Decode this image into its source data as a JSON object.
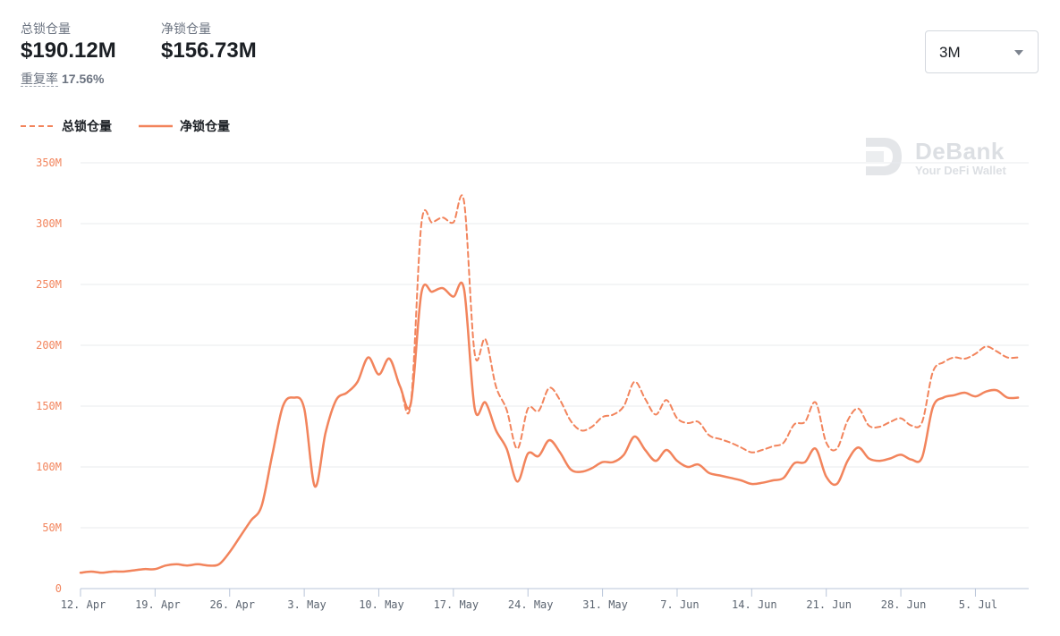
{
  "header": {
    "total_tvl_label": "总锁仓量",
    "total_tvl_value": "$190.12M",
    "net_tvl_label": "净锁仓量",
    "net_tvl_value": "$156.73M",
    "overlap_label": "重复率",
    "overlap_value": "17.56%"
  },
  "range_select": {
    "value": "3M"
  },
  "legend": {
    "total": "总锁仓量",
    "net": "净锁仓量"
  },
  "watermark": {
    "title": "DeBank",
    "subtitle": "Your DeFi Wallet"
  },
  "colors": {
    "series": "#f2845c",
    "ytick": "#f2845c",
    "xtick": "#5b6470",
    "grid": "#e9ebee",
    "axis": "#b8c4d8"
  },
  "chart_data": {
    "type": "line",
    "ylim": [
      0,
      350
    ],
    "y_unit": "M",
    "yticks": [
      0,
      50,
      100,
      150,
      200,
      250,
      300,
      350
    ],
    "ytick_labels": [
      "0",
      "50M",
      "100M",
      "150M",
      "200M",
      "250M",
      "300M",
      "350M"
    ],
    "x_range": [
      "2021-04-12",
      "2021-07-10"
    ],
    "xticks": [
      "2021-04-12",
      "2021-04-19",
      "2021-04-26",
      "2021-05-03",
      "2021-05-10",
      "2021-05-17",
      "2021-05-24",
      "2021-05-31",
      "2021-06-07",
      "2021-06-14",
      "2021-06-21",
      "2021-06-28",
      "2021-07-05"
    ],
    "xtick_labels": [
      "12. Apr",
      "19. Apr",
      "26. Apr",
      "3. May",
      "10. May",
      "17. May",
      "24. May",
      "31. May",
      "7. Jun",
      "14. Jun",
      "21. Jun",
      "28. Jun",
      "5. Jul"
    ],
    "grid": true,
    "legend_position": "top-left",
    "series": [
      {
        "name": "总锁仓量",
        "style": "dashed",
        "points": [
          [
            "2021-04-12",
            13
          ],
          [
            "2021-04-13",
            14
          ],
          [
            "2021-04-14",
            13
          ],
          [
            "2021-04-15",
            14
          ],
          [
            "2021-04-16",
            14
          ],
          [
            "2021-04-17",
            15
          ],
          [
            "2021-04-18",
            16
          ],
          [
            "2021-04-19",
            16
          ],
          [
            "2021-04-20",
            19
          ],
          [
            "2021-04-21",
            20
          ],
          [
            "2021-04-22",
            19
          ],
          [
            "2021-04-23",
            20
          ],
          [
            "2021-04-24",
            19
          ],
          [
            "2021-04-25",
            20
          ],
          [
            "2021-04-26",
            30
          ],
          [
            "2021-04-27",
            43
          ],
          [
            "2021-04-28",
            56
          ],
          [
            "2021-04-29",
            68
          ],
          [
            "2021-04-30",
            110
          ],
          [
            "2021-05-01",
            150
          ],
          [
            "2021-05-02",
            157
          ],
          [
            "2021-05-03",
            148
          ],
          [
            "2021-05-04",
            84
          ],
          [
            "2021-05-05",
            128
          ],
          [
            "2021-05-06",
            155
          ],
          [
            "2021-05-07",
            161
          ],
          [
            "2021-05-08",
            170
          ],
          [
            "2021-05-09",
            190
          ],
          [
            "2021-05-10",
            176
          ],
          [
            "2021-05-11",
            189
          ],
          [
            "2021-05-12",
            166
          ],
          [
            "2021-05-13",
            152
          ],
          [
            "2021-05-14",
            300
          ],
          [
            "2021-05-15",
            301
          ],
          [
            "2021-05-16",
            305
          ],
          [
            "2021-05-17",
            301
          ],
          [
            "2021-05-18",
            318
          ],
          [
            "2021-05-19",
            193
          ],
          [
            "2021-05-20",
            205
          ],
          [
            "2021-05-21",
            166
          ],
          [
            "2021-05-22",
            147
          ],
          [
            "2021-05-23",
            115
          ],
          [
            "2021-05-24",
            148
          ],
          [
            "2021-05-25",
            146
          ],
          [
            "2021-05-26",
            165
          ],
          [
            "2021-05-27",
            155
          ],
          [
            "2021-05-28",
            138
          ],
          [
            "2021-05-29",
            130
          ],
          [
            "2021-05-30",
            133
          ],
          [
            "2021-05-31",
            141
          ],
          [
            "2021-06-01",
            143
          ],
          [
            "2021-06-02",
            150
          ],
          [
            "2021-06-03",
            170
          ],
          [
            "2021-06-04",
            156
          ],
          [
            "2021-06-05",
            143
          ],
          [
            "2021-06-06",
            155
          ],
          [
            "2021-06-07",
            140
          ],
          [
            "2021-06-08",
            136
          ],
          [
            "2021-06-09",
            137
          ],
          [
            "2021-06-10",
            126
          ],
          [
            "2021-06-11",
            123
          ],
          [
            "2021-06-12",
            120
          ],
          [
            "2021-06-13",
            116
          ],
          [
            "2021-06-14",
            112
          ],
          [
            "2021-06-15",
            114
          ],
          [
            "2021-06-16",
            117
          ],
          [
            "2021-06-17",
            120
          ],
          [
            "2021-06-18",
            135
          ],
          [
            "2021-06-19",
            137
          ],
          [
            "2021-06-20",
            153
          ],
          [
            "2021-06-21",
            120
          ],
          [
            "2021-06-22",
            115
          ],
          [
            "2021-06-23",
            138
          ],
          [
            "2021-06-24",
            148
          ],
          [
            "2021-06-25",
            134
          ],
          [
            "2021-06-26",
            133
          ],
          [
            "2021-06-27",
            137
          ],
          [
            "2021-06-28",
            140
          ],
          [
            "2021-06-29",
            134
          ],
          [
            "2021-06-30",
            137
          ],
          [
            "2021-07-01",
            178
          ],
          [
            "2021-07-02",
            186
          ],
          [
            "2021-07-03",
            190
          ],
          [
            "2021-07-04",
            189
          ],
          [
            "2021-07-05",
            193
          ],
          [
            "2021-07-06",
            199
          ],
          [
            "2021-07-07",
            195
          ],
          [
            "2021-07-08",
            190
          ],
          [
            "2021-07-09",
            190
          ]
        ]
      },
      {
        "name": "净锁仓量",
        "style": "solid",
        "points": [
          [
            "2021-04-12",
            13
          ],
          [
            "2021-04-13",
            14
          ],
          [
            "2021-04-14",
            13
          ],
          [
            "2021-04-15",
            14
          ],
          [
            "2021-04-16",
            14
          ],
          [
            "2021-04-17",
            15
          ],
          [
            "2021-04-18",
            16
          ],
          [
            "2021-04-19",
            16
          ],
          [
            "2021-04-20",
            19
          ],
          [
            "2021-04-21",
            20
          ],
          [
            "2021-04-22",
            19
          ],
          [
            "2021-04-23",
            20
          ],
          [
            "2021-04-24",
            19
          ],
          [
            "2021-04-25",
            20
          ],
          [
            "2021-04-26",
            30
          ],
          [
            "2021-04-27",
            43
          ],
          [
            "2021-04-28",
            56
          ],
          [
            "2021-04-29",
            68
          ],
          [
            "2021-04-30",
            110
          ],
          [
            "2021-05-01",
            150
          ],
          [
            "2021-05-02",
            157
          ],
          [
            "2021-05-03",
            148
          ],
          [
            "2021-05-04",
            84
          ],
          [
            "2021-05-05",
            128
          ],
          [
            "2021-05-06",
            155
          ],
          [
            "2021-05-07",
            161
          ],
          [
            "2021-05-08",
            170
          ],
          [
            "2021-05-09",
            190
          ],
          [
            "2021-05-10",
            176
          ],
          [
            "2021-05-11",
            189
          ],
          [
            "2021-05-12",
            166
          ],
          [
            "2021-05-13",
            152
          ],
          [
            "2021-05-14",
            243
          ],
          [
            "2021-05-15",
            244
          ],
          [
            "2021-05-16",
            247
          ],
          [
            "2021-05-17",
            240
          ],
          [
            "2021-05-18",
            246
          ],
          [
            "2021-05-19",
            148
          ],
          [
            "2021-05-20",
            153
          ],
          [
            "2021-05-21",
            130
          ],
          [
            "2021-05-22",
            115
          ],
          [
            "2021-05-23",
            88
          ],
          [
            "2021-05-24",
            111
          ],
          [
            "2021-05-25",
            109
          ],
          [
            "2021-05-26",
            122
          ],
          [
            "2021-05-27",
            112
          ],
          [
            "2021-05-28",
            98
          ],
          [
            "2021-05-29",
            96
          ],
          [
            "2021-05-30",
            99
          ],
          [
            "2021-05-31",
            104
          ],
          [
            "2021-06-01",
            104
          ],
          [
            "2021-06-02",
            110
          ],
          [
            "2021-06-03",
            125
          ],
          [
            "2021-06-04",
            114
          ],
          [
            "2021-06-05",
            105
          ],
          [
            "2021-06-06",
            114
          ],
          [
            "2021-06-07",
            105
          ],
          [
            "2021-06-08",
            100
          ],
          [
            "2021-06-09",
            102
          ],
          [
            "2021-06-10",
            95
          ],
          [
            "2021-06-11",
            93
          ],
          [
            "2021-06-12",
            91
          ],
          [
            "2021-06-13",
            89
          ],
          [
            "2021-06-14",
            86
          ],
          [
            "2021-06-15",
            87
          ],
          [
            "2021-06-16",
            89
          ],
          [
            "2021-06-17",
            91
          ],
          [
            "2021-06-18",
            103
          ],
          [
            "2021-06-19",
            104
          ],
          [
            "2021-06-20",
            115
          ],
          [
            "2021-06-21",
            92
          ],
          [
            "2021-06-22",
            86
          ],
          [
            "2021-06-23",
            105
          ],
          [
            "2021-06-24",
            116
          ],
          [
            "2021-06-25",
            107
          ],
          [
            "2021-06-26",
            105
          ],
          [
            "2021-06-27",
            107
          ],
          [
            "2021-06-28",
            110
          ],
          [
            "2021-06-29",
            106
          ],
          [
            "2021-06-30",
            108
          ],
          [
            "2021-07-01",
            149
          ],
          [
            "2021-07-02",
            157
          ],
          [
            "2021-07-03",
            159
          ],
          [
            "2021-07-04",
            161
          ],
          [
            "2021-07-05",
            158
          ],
          [
            "2021-07-06",
            162
          ],
          [
            "2021-07-07",
            163
          ],
          [
            "2021-07-08",
            157
          ],
          [
            "2021-07-09",
            157
          ]
        ]
      }
    ]
  }
}
